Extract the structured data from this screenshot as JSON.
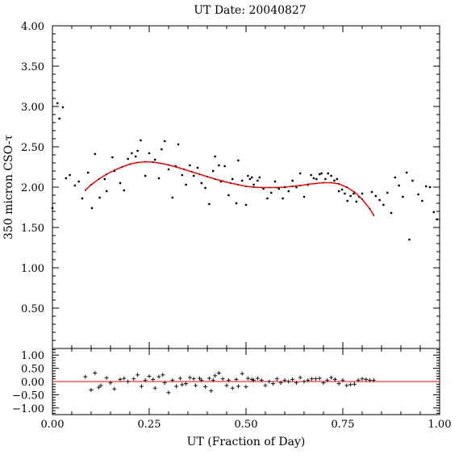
{
  "chart_data": [
    {
      "type": "scatter",
      "title": "UT Date: 20040827",
      "ylabel": "350 micron CSO-τ",
      "xlim": [
        0.0,
        1.0
      ],
      "ylim": [
        0.0,
        4.0
      ],
      "xticks": [
        "0.00",
        "0.25",
        "0.50",
        "0.75",
        "1.00"
      ],
      "yticks": [
        "0.50",
        "1.00",
        "1.50",
        "2.00",
        "2.50",
        "3.00",
        "3.50",
        "4.00"
      ],
      "colors": {
        "points": "#000000",
        "fit": "#ff0000"
      },
      "series": [
        {
          "kind": "points",
          "x": [
            0.0,
            0.013,
            0.018,
            0.027,
            0.035,
            0.045,
            0.058,
            0.068,
            0.077,
            0.092,
            0.102,
            0.11,
            0.122,
            0.135,
            0.14,
            0.155,
            0.16,
            0.175,
            0.185,
            0.195,
            0.205,
            0.215,
            0.22,
            0.228,
            0.24,
            0.25,
            0.265,
            0.275,
            0.282,
            0.29,
            0.3,
            0.31,
            0.318,
            0.325,
            0.335,
            0.345,
            0.355,
            0.365,
            0.375,
            0.385,
            0.395,
            0.405,
            0.415,
            0.42,
            0.43,
            0.435,
            0.445,
            0.455,
            0.465,
            0.475,
            0.48,
            0.49,
            0.5,
            0.505,
            0.51,
            0.515,
            0.52,
            0.53,
            0.535,
            0.545,
            0.555,
            0.565,
            0.575,
            0.585,
            0.595,
            0.6,
            0.61,
            0.62,
            0.63,
            0.64,
            0.65,
            0.66,
            0.668,
            0.675,
            0.682,
            0.69,
            0.695,
            0.705,
            0.712,
            0.72,
            0.728,
            0.735,
            0.74,
            0.748,
            0.755,
            0.762,
            0.77,
            0.778,
            0.785,
            0.792,
            0.8,
            0.825,
            0.835,
            0.845,
            0.855,
            0.865,
            0.875,
            0.885,
            0.895,
            0.905,
            0.915,
            0.922,
            0.93,
            0.945,
            0.955,
            0.965,
            0.975,
            0.985,
            0.993
          ],
          "y": [
            1.74,
            3.04,
            2.85,
            2.99,
            2.11,
            2.15,
            2.02,
            2.07,
            1.86,
            2.18,
            1.74,
            2.41,
            1.87,
            2.1,
            1.95,
            2.37,
            2.2,
            2.05,
            1.96,
            2.35,
            2.42,
            2.38,
            2.45,
            2.58,
            2.14,
            2.42,
            2.34,
            2.11,
            2.47,
            2.57,
            2.22,
            1.87,
            2.26,
            2.53,
            2.15,
            2.03,
            2.27,
            2.14,
            2.24,
            2.05,
            1.99,
            1.79,
            2.2,
            2.38,
            2.27,
            2.07,
            2.26,
            1.9,
            2.1,
            1.8,
            2.33,
            2.08,
            1.78,
            2.14,
            2.1,
            2.12,
            2.03,
            2.08,
            2.12,
            1.98,
            1.86,
            1.93,
            2.07,
            1.98,
            1.86,
            2.0,
            1.95,
            2.08,
            2.0,
            2.17,
            1.88,
            2.03,
            2.15,
            2.11,
            2.1,
            2.16,
            2.17,
            2.1,
            2.17,
            2.14,
            2.08,
            2.1,
            1.95,
            1.97,
            1.92,
            1.83,
            1.89,
            1.92,
            1.82,
            1.88,
            1.92,
            1.94,
            1.89,
            1.84,
            1.78,
            1.93,
            1.68,
            2.12,
            2.02,
            1.88,
            2.18,
            1.35,
            2.08,
            1.91,
            1.83,
            2.01,
            2.0,
            1.69,
            1.6
          ]
        },
        {
          "kind": "fit",
          "x": [
            0.085,
            0.1,
            0.12,
            0.14,
            0.16,
            0.18,
            0.2,
            0.22,
            0.24,
            0.26,
            0.28,
            0.3,
            0.32,
            0.34,
            0.36,
            0.38,
            0.4,
            0.42,
            0.44,
            0.46,
            0.48,
            0.5,
            0.52,
            0.54,
            0.56,
            0.58,
            0.6,
            0.62,
            0.64,
            0.66,
            0.68,
            0.7,
            0.72,
            0.74,
            0.76,
            0.78,
            0.8,
            0.82,
            0.83
          ],
          "y": [
            1.96,
            2.03,
            2.1,
            2.16,
            2.21,
            2.25,
            2.285,
            2.305,
            2.315,
            2.31,
            2.295,
            2.275,
            2.25,
            2.22,
            2.19,
            2.16,
            2.13,
            2.1,
            2.075,
            2.05,
            2.03,
            2.01,
            2.0,
            1.995,
            1.995,
            1.995,
            2.0,
            2.01,
            2.02,
            2.035,
            2.045,
            2.055,
            2.055,
            2.04,
            2.0,
            1.94,
            1.85,
            1.73,
            1.65
          ]
        }
      ]
    },
    {
      "type": "scatter",
      "xlabel": "UT (Fraction of Day)",
      "xlim": [
        0.0,
        1.0
      ],
      "ylim": [
        -1.25,
        1.25
      ],
      "xticks": [
        "0.00",
        "0.25",
        "0.50",
        "0.75",
        "1.00"
      ],
      "yticks": [
        "1.00",
        "0.50",
        "0.00",
        "−0.50",
        "−1.00"
      ],
      "colors": {
        "points": "#000000",
        "zero_line": "#ff0000"
      },
      "series": [
        {
          "kind": "residuals",
          "x": [
            0.085,
            0.1,
            0.11,
            0.12,
            0.125,
            0.14,
            0.15,
            0.16,
            0.175,
            0.185,
            0.195,
            0.21,
            0.22,
            0.23,
            0.24,
            0.25,
            0.26,
            0.265,
            0.275,
            0.285,
            0.29,
            0.3,
            0.31,
            0.32,
            0.33,
            0.335,
            0.345,
            0.355,
            0.365,
            0.37,
            0.38,
            0.385,
            0.395,
            0.405,
            0.41,
            0.415,
            0.42,
            0.43,
            0.44,
            0.45,
            0.455,
            0.465,
            0.475,
            0.48,
            0.49,
            0.5,
            0.505,
            0.515,
            0.52,
            0.53,
            0.54,
            0.55,
            0.56,
            0.57,
            0.58,
            0.59,
            0.6,
            0.61,
            0.62,
            0.63,
            0.64,
            0.65,
            0.66,
            0.67,
            0.68,
            0.69,
            0.7,
            0.71,
            0.72,
            0.73,
            0.74,
            0.75,
            0.76,
            0.77,
            0.78,
            0.79,
            0.8,
            0.81,
            0.82,
            0.83
          ],
          "y": [
            0.18,
            -0.32,
            0.32,
            -0.22,
            -0.15,
            0.14,
            -0.05,
            -0.28,
            0.08,
            0.12,
            0.0,
            0.1,
            0.25,
            -0.18,
            0.05,
            0.2,
            0.08,
            -0.25,
            0.18,
            0.25,
            -0.05,
            -0.42,
            0.05,
            -0.18,
            0.12,
            -0.12,
            -0.08,
            0.15,
            0.1,
            -0.15,
            0.12,
            0.05,
            -0.2,
            0.12,
            -0.35,
            0.05,
            0.22,
            0.32,
            0.1,
            -0.15,
            0.05,
            -0.25,
            0.08,
            -0.18,
            0.3,
            -0.2,
            0.12,
            0.08,
            0.05,
            0.12,
            0.05,
            -0.15,
            0.0,
            -0.08,
            0.1,
            -0.05,
            0.05,
            0.0,
            0.08,
            -0.05,
            0.15,
            0.0,
            0.05,
            0.1,
            0.1,
            0.12,
            -0.05,
            0.05,
            0.15,
            0.08,
            -0.08,
            0.05,
            -0.15,
            -0.12,
            -0.1,
            0.05,
            0.1,
            0.08,
            0.05,
            0.05
          ]
        }
      ]
    }
  ]
}
